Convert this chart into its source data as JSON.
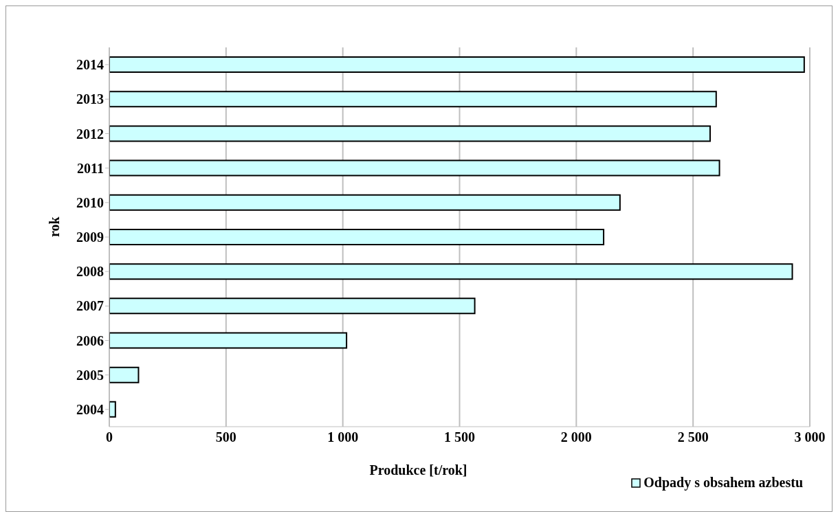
{
  "chart_data": {
    "type": "bar",
    "orientation": "horizontal",
    "xlabel": "Produkce [t/rok]",
    "ylabel": "rok",
    "categories": [
      "2014",
      "2013",
      "2012",
      "2011",
      "2010",
      "2009",
      "2008",
      "2007",
      "2006",
      "2005",
      "2004"
    ],
    "series": [
      {
        "name": "Odpady s obsahem azbestu",
        "color": "#ccffff",
        "values": [
          2976,
          2599,
          2573,
          2613,
          2187,
          2117,
          2925,
          1565,
          1016,
          125,
          26
        ]
      }
    ],
    "xlim": [
      0,
      3000
    ],
    "xticks": [
      {
        "value": 0,
        "label": "0"
      },
      {
        "value": 500,
        "label": "500"
      },
      {
        "value": 1000,
        "label": "1 000"
      },
      {
        "value": 1500,
        "label": "1 500"
      },
      {
        "value": 2000,
        "label": "2 000"
      },
      {
        "value": 2500,
        "label": "2 500"
      },
      {
        "value": 3000,
        "label": "3 000"
      }
    ],
    "grid": "x",
    "legend": "bottom right"
  }
}
